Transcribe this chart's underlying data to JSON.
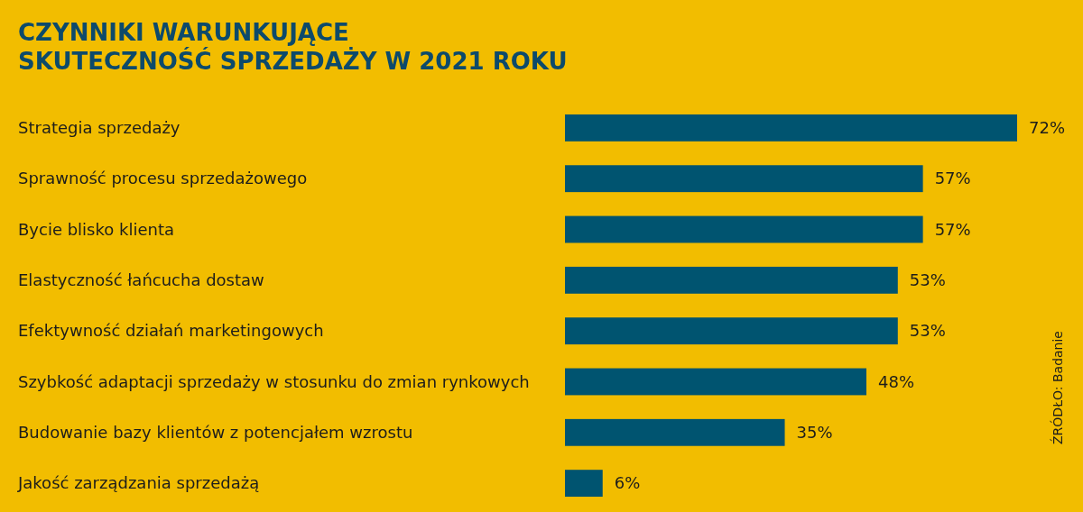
{
  "chart_data": {
    "type": "bar",
    "orientation": "horizontal",
    "title": "CZYNNIKI WARUNKUJĄCE\nSKUTECZNOŚĆ SPRZEDAŻY W 2021 ROKU",
    "categories": [
      "Strategia sprzedaży",
      "Sprawność procesu sprzedażowego",
      "Bycie blisko klienta",
      "Elastyczność łańcucha dostaw",
      "Efektywność działań marketingowych",
      "Szybkość adaptacji sprzedaży w stosunku do zmian rynkowych",
      "Budowanie bazy klientów z potencjałem wzrostu",
      "Jakość zarządzania sprzedażą"
    ],
    "values": [
      72,
      57,
      57,
      53,
      53,
      48,
      35,
      6
    ],
    "value_labels": [
      "72%",
      "57%",
      "57%",
      "53%",
      "53%",
      "48%",
      "35%",
      "6%"
    ],
    "color": "#005470",
    "annotations": [
      "ŹRÓDŁO: Badanie"
    ]
  }
}
